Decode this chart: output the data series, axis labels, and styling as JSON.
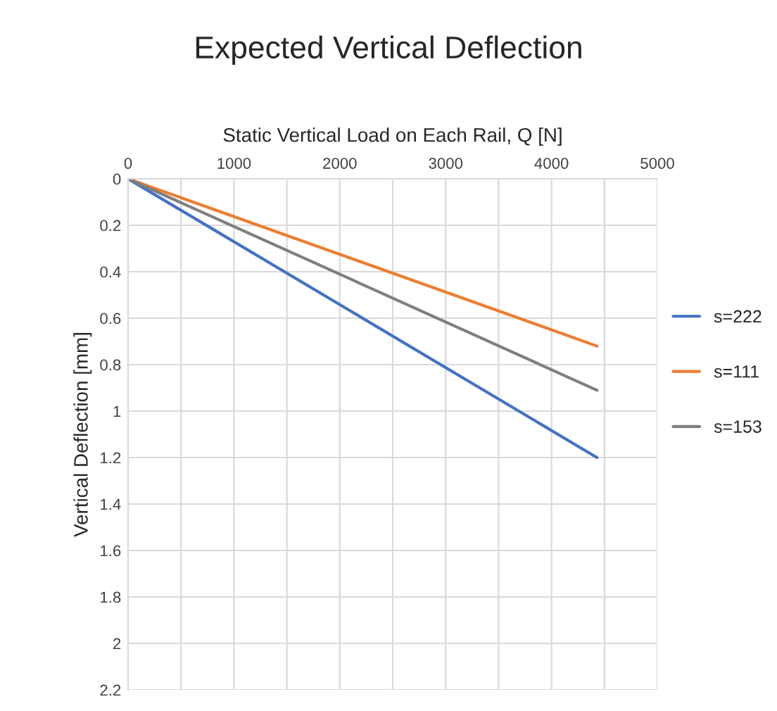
{
  "chart_data": {
    "type": "line",
    "title": "Expected Vertical Deflection",
    "xlabel": "Static Vertical Load on Each Rail, Q [N]",
    "ylabel": "Vertical Deflection [mm]",
    "x": [
      0,
      4430
    ],
    "series": [
      {
        "name": "s=222",
        "color": "#4472c4",
        "values": [
          0,
          1.2
        ]
      },
      {
        "name": "s=111",
        "color": "#ed7d31",
        "values": [
          0,
          0.72
        ]
      },
      {
        "name": "s=153",
        "color": "#7f7f7f",
        "values": [
          0,
          0.91
        ]
      }
    ],
    "xlim": [
      0,
      5000
    ],
    "xticks": [
      0,
      {
        "value": 500,
        "label": null
      },
      1000,
      {
        "value": 1500,
        "label": null
      },
      2000,
      {
        "value": 2500,
        "label": null
      },
      3000,
      {
        "value": 3500,
        "label": null
      },
      4000,
      {
        "value": 4500,
        "label": null
      },
      5000
    ],
    "ylim": [
      2.2,
      0
    ],
    "yticks": [
      0,
      0.2,
      0.4,
      0.6,
      0.8,
      1,
      1.2,
      1.4,
      1.6,
      1.8,
      2,
      2.2
    ],
    "grid": true,
    "legend": "right",
    "marker": "none",
    "line_style": "solid"
  }
}
